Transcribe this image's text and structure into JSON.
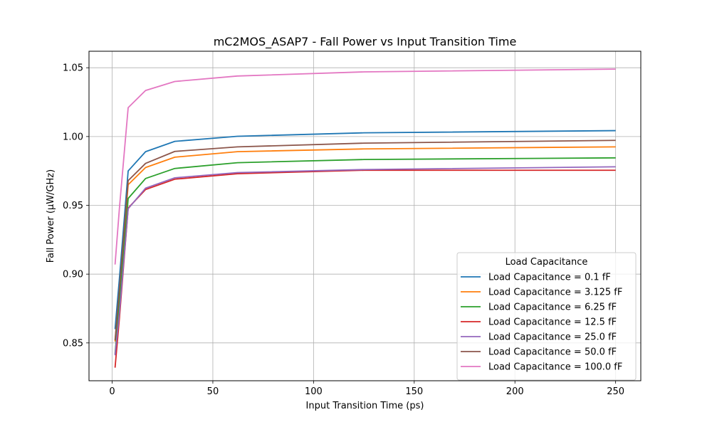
{
  "chart_data": {
    "type": "line",
    "title": "mC2MOS_ASAP7 - Fall Power vs Input Transition Time",
    "xlabel": "Input Transition Time (ps)",
    "ylabel": "Fall Power (µW/GHz)",
    "xlim": [
      -11.5,
      262.5
    ],
    "ylim": [
      0.8225,
      1.062
    ],
    "xticks": [
      0,
      50,
      100,
      150,
      200,
      250
    ],
    "yticks": [
      0.85,
      0.9,
      0.95,
      1.0,
      1.05
    ],
    "xtick_labels": [
      "0",
      "50",
      "100",
      "150",
      "200",
      "250"
    ],
    "ytick_labels": [
      "0.85",
      "0.90",
      "0.95",
      "1.00",
      "1.05"
    ],
    "grid": true,
    "legend_title": "Load Capacitance",
    "legend_position": "lower-right",
    "x": [
      1.44,
      3.61,
      7.95,
      16.6,
      31.1,
      62.2,
      125,
      250
    ],
    "series": [
      {
        "name": "Load Capacitance = 0.1 fF",
        "color": "#1f77b4",
        "values": [
          0.86,
          0.897,
          0.975,
          0.989,
          0.9965,
          1.0002,
          1.0027,
          1.0043
        ]
      },
      {
        "name": "Load Capacitance = 3.125 fF",
        "color": "#ff7f0e",
        "values": [
          0.851,
          0.887,
          0.965,
          0.9775,
          0.985,
          0.989,
          0.991,
          0.9925
        ]
      },
      {
        "name": "Load Capacitance = 6.25 fF",
        "color": "#2ca02c",
        "values": [
          0.842,
          0.879,
          0.955,
          0.9695,
          0.9768,
          0.981,
          0.9833,
          0.9845
        ]
      },
      {
        "name": "Load Capacitance = 12.5 fF",
        "color": "#d62728",
        "values": [
          0.832,
          0.868,
          0.948,
          0.9615,
          0.969,
          0.973,
          0.9755,
          0.9755
        ]
      },
      {
        "name": "Load Capacitance = 25.0 fF",
        "color": "#9467bd",
        "values": [
          0.841,
          0.872,
          0.9475,
          0.9625,
          0.97,
          0.9738,
          0.976,
          0.978
        ]
      },
      {
        "name": "Load Capacitance = 50.0 fF",
        "color": "#8c564b",
        "values": [
          0.852,
          0.889,
          0.968,
          0.9805,
          0.9892,
          0.9925,
          0.9952,
          0.9972
        ]
      },
      {
        "name": "Load Capacitance = 100.0 fF",
        "color": "#e377c2",
        "values": [
          0.907,
          0.948,
          1.021,
          1.0335,
          1.04,
          1.044,
          1.047,
          1.049
        ]
      }
    ]
  }
}
